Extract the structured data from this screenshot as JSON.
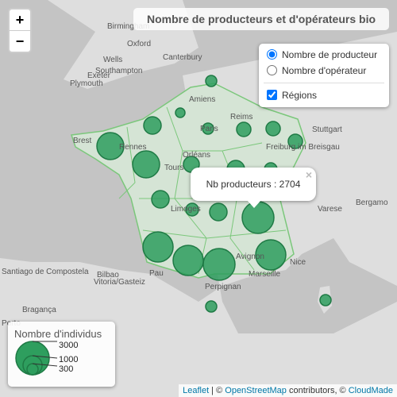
{
  "title": "Nombre de producteurs et d'opérateurs bio",
  "zoom": {
    "in": "+",
    "out": "−"
  },
  "layers": {
    "options": [
      "Nombre de producteur",
      "Nombre d'opérateur"
    ],
    "overlay": "Régions"
  },
  "popup": {
    "text": "Nb producteurs : 2704",
    "close": "×"
  },
  "legend": {
    "title": "Nombre d'individus",
    "labels": [
      "3000",
      "1000",
      "300"
    ]
  },
  "attribution": {
    "leaflet": "Leaflet",
    "sep": " | © ",
    "osm": "OpenStreetMap",
    "mid": " contributors, © ",
    "cloudmade": "CloudMade"
  },
  "map": {
    "labels": [
      "Birmingham",
      "Oxford",
      "Wells",
      "Southampton",
      "Exeter",
      "Plymouth",
      "Canterbury",
      "Amiens",
      "Paris",
      "Reims",
      "Stuttgart",
      "Freiburg im Breisgau",
      "Brest",
      "Rennes",
      "Orléans",
      "Tours",
      "Limoges",
      "Varese",
      "Bergamo",
      "Avignon",
      "Nice",
      "Marseille",
      "Perpignan",
      "Pau",
      "Bilbao",
      "Vitoria/Gasteiz",
      "Santiago de Compostela",
      "Bragança",
      "Porto"
    ]
  }
}
